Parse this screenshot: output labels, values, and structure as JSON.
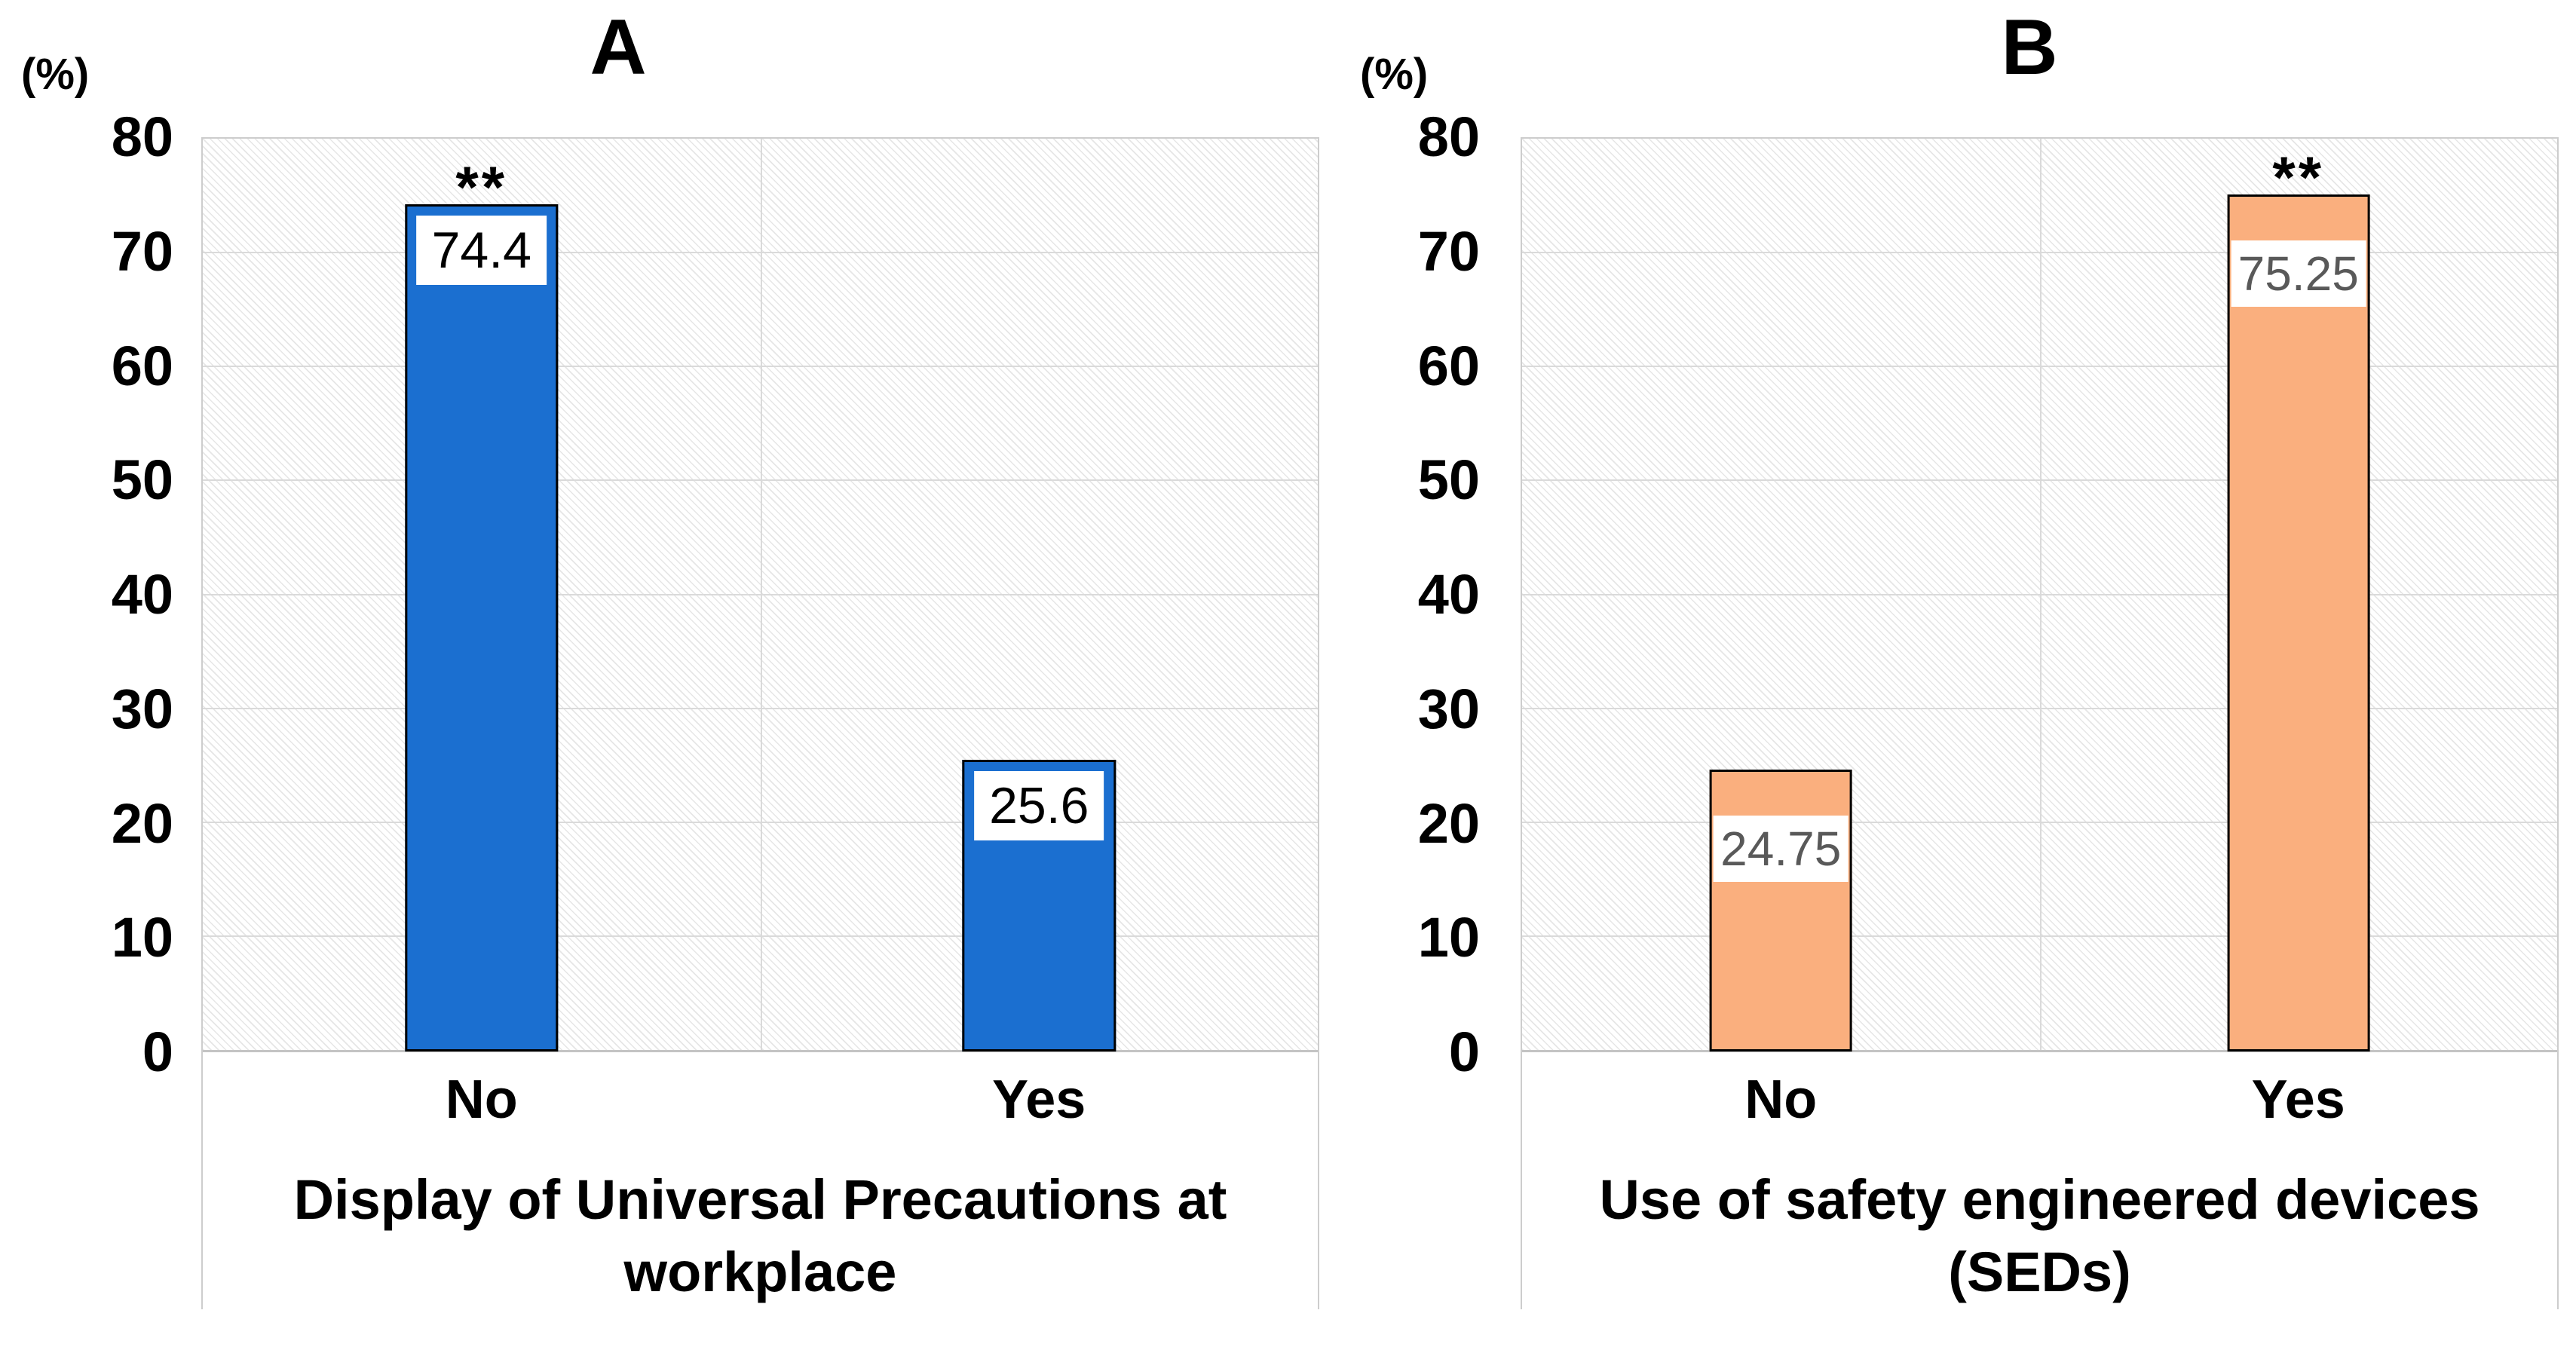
{
  "figure": {
    "background": "#ffffff",
    "grid_color": "#dadada",
    "plot_border_color": "#cdcdcd",
    "hatch": "light diagonal hatch fill in plot area"
  },
  "chart_data": [
    {
      "type": "bar",
      "title": "A",
      "categories": [
        "No",
        "Yes"
      ],
      "values": [
        74.4,
        25.6
      ],
      "data_labels": [
        "74.4",
        "25.6"
      ],
      "significance": [
        "**",
        ""
      ],
      "xlabel": "Display of Universal Precautions at\nworkplace",
      "ylabel": "(%)",
      "ylim": [
        0,
        80
      ],
      "yticks": [
        80,
        70,
        60,
        50,
        40,
        30,
        20,
        10,
        0
      ],
      "grid": true,
      "legend_position": "none",
      "bar_color": "#1b6fd0",
      "bar_border_color": "#000000",
      "data_label_text_color": "#000000",
      "data_label_background": "#ffffff"
    },
    {
      "type": "bar",
      "title": "B",
      "categories": [
        "No",
        "Yes"
      ],
      "values": [
        24.75,
        75.25
      ],
      "data_labels": [
        "24.75",
        "75.25"
      ],
      "significance": [
        "",
        "**"
      ],
      "xlabel": "Use of safety engineered devices\n(SEDs)",
      "ylabel": "(%)",
      "ylim": [
        0,
        80
      ],
      "yticks": [
        80,
        70,
        60,
        50,
        40,
        30,
        20,
        10,
        0
      ],
      "grid": true,
      "legend_position": "none",
      "bar_color": "#faaf7e",
      "bar_border_color": "#000000",
      "data_label_text_color": "#595959",
      "data_label_background": "#ffffff"
    }
  ]
}
